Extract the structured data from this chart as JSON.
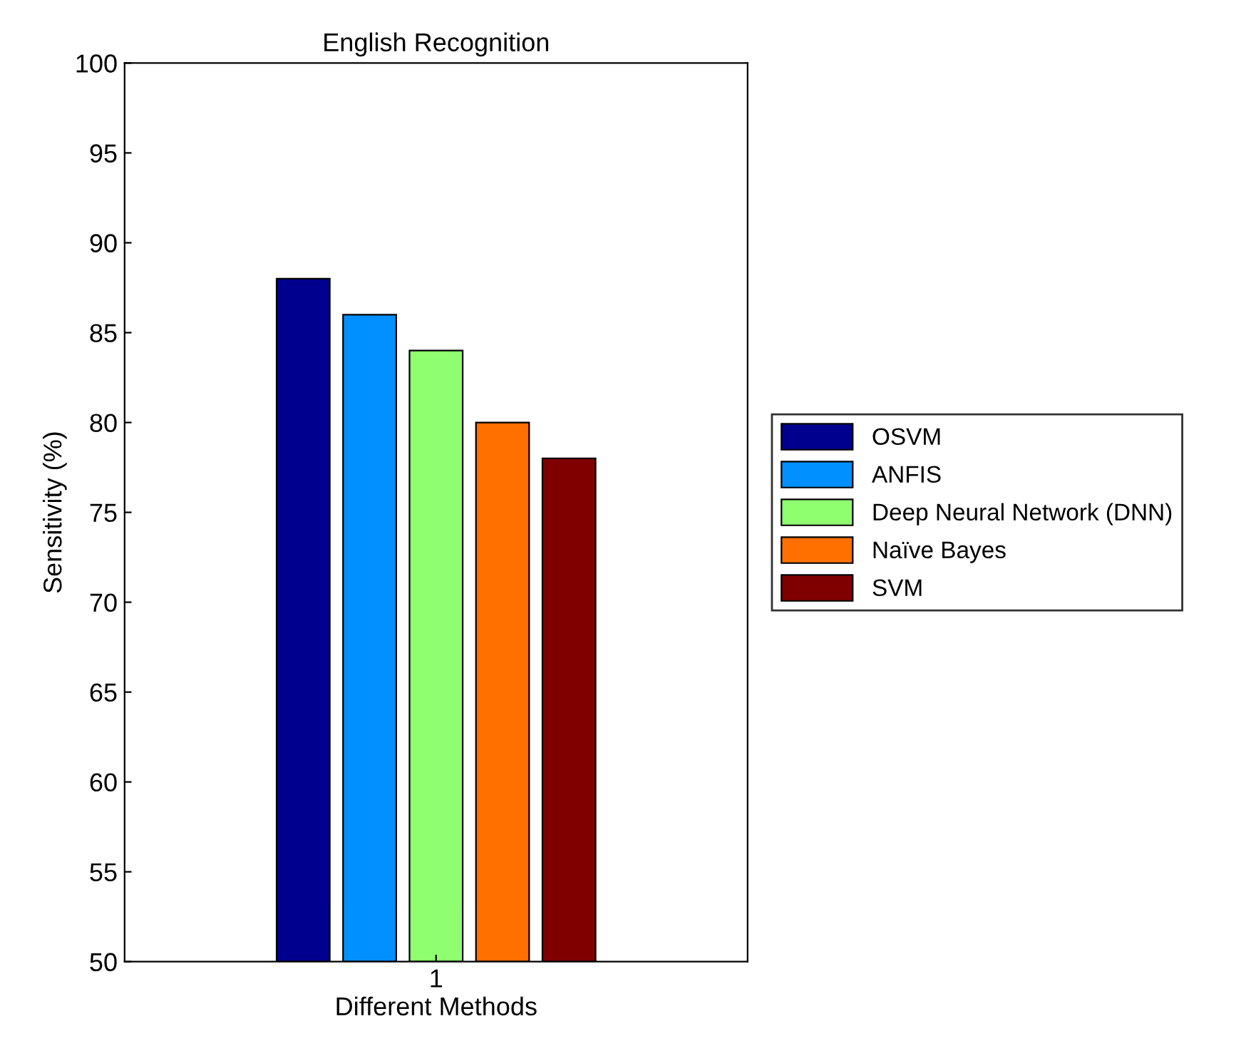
{
  "chart_data": {
    "type": "bar",
    "title": "English Recognition",
    "xlabel": "Different Methods",
    "ylabel": "Sensitivity (%)",
    "categories": [
      "1"
    ],
    "series": [
      {
        "name": "OSVM",
        "color": "#00008f",
        "values": [
          88
        ]
      },
      {
        "name": "ANFIS",
        "color": "#0090ff",
        "values": [
          86
        ]
      },
      {
        "name": "Deep Neural Network (DNN)",
        "color": "#8fff70",
        "values": [
          84
        ]
      },
      {
        "name": "Naïve Bayes",
        "color": "#ff7000",
        "values": [
          80
        ]
      },
      {
        "name": "SVM",
        "color": "#800000",
        "values": [
          78
        ]
      }
    ],
    "ylim": [
      50,
      100
    ],
    "yticks": [
      50,
      55,
      60,
      65,
      70,
      75,
      80,
      85,
      90,
      95,
      100
    ],
    "grid": false,
    "legend": "right"
  }
}
